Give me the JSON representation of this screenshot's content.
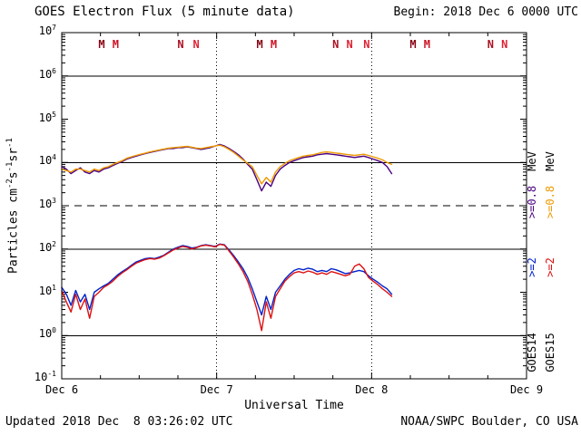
{
  "header": {
    "title": "GOES Electron Flux (5 minute data)",
    "begin": "Begin: 2018 Dec 6 0000 UTC"
  },
  "footer": {
    "updated": "Updated 2018 Dec  8 03:26:02 UTC",
    "credit": "NOAA/SWPC Boulder, CO USA"
  },
  "axes": {
    "x_title": "Universal Time",
    "x_ticks": [
      "Dec 6",
      "Dec 7",
      "Dec 8",
      "Dec 9"
    ],
    "y_label_parts": {
      "p1": "Particles cm",
      "e1": "-2",
      "p2": "s",
      "e2": "-1",
      "p3": "sr",
      "e3": "-1"
    },
    "y_exponents": [
      7,
      6,
      5,
      4,
      3,
      2,
      1,
      0,
      -1
    ]
  },
  "right_labels": {
    "col1": {
      "mev": "MeV",
      "ch1": ">=0.8",
      "ch1_color": "#4b0082",
      "ch2": ">=2",
      "ch2_color": "#0022cc",
      "sat": "GOES14"
    },
    "col2": {
      "mev": "MeV",
      "ch1": ">=0.8",
      "ch1_color": "#ee9900",
      "ch2": ">=2",
      "ch2_color": "#dd1111",
      "sat": "GOES15"
    }
  },
  "markers": [
    {
      "label": "M",
      "day": 0.26,
      "color": "#880011"
    },
    {
      "label": "M",
      "day": 0.35,
      "color": "#cc1122"
    },
    {
      "label": "N",
      "day": 0.77,
      "color": "#aa1122"
    },
    {
      "label": "N",
      "day": 0.87,
      "color": "#dd2233"
    },
    {
      "label": "M",
      "day": 1.28,
      "color": "#880011"
    },
    {
      "label": "M",
      "day": 1.37,
      "color": "#cc1122"
    },
    {
      "label": "N",
      "day": 1.77,
      "color": "#aa1122"
    },
    {
      "label": "N",
      "day": 1.86,
      "color": "#dd2233"
    },
    {
      "label": "N",
      "day": 1.97,
      "color": "#dd2233"
    },
    {
      "label": "M",
      "day": 2.27,
      "color": "#880011"
    },
    {
      "label": "M",
      "day": 2.36,
      "color": "#cc1122"
    },
    {
      "label": "N",
      "day": 2.77,
      "color": "#aa1122"
    },
    {
      "label": "N",
      "day": 2.86,
      "color": "#dd2233"
    }
  ],
  "chart_data": {
    "type": "line",
    "title": "GOES Electron Flux (5 minute data)",
    "xlabel": "Universal Time",
    "ylabel": "Particles cm-2 s-1 sr-1",
    "x_axis_days": [
      0,
      3
    ],
    "x_tick_labels": [
      "Dec 6",
      "Dec 7",
      "Dec 8",
      "Dec 9"
    ],
    "y_scale": "log",
    "ylim": [
      0.1,
      10000000
    ],
    "solid_gridlines_log": [
      0,
      2,
      4,
      6
    ],
    "threshold_line": {
      "value": 1000,
      "style": "dashed"
    },
    "vertical_dotted_days": [
      1,
      2
    ],
    "x_days": [
      0.0,
      0.03,
      0.06,
      0.09,
      0.12,
      0.15,
      0.18,
      0.21,
      0.24,
      0.27,
      0.3,
      0.33,
      0.36,
      0.39,
      0.42,
      0.45,
      0.48,
      0.51,
      0.54,
      0.57,
      0.6,
      0.63,
      0.66,
      0.69,
      0.72,
      0.75,
      0.78,
      0.81,
      0.84,
      0.87,
      0.9,
      0.93,
      0.96,
      0.99,
      1.02,
      1.05,
      1.08,
      1.11,
      1.14,
      1.17,
      1.2,
      1.23,
      1.26,
      1.29,
      1.32,
      1.35,
      1.38,
      1.41,
      1.44,
      1.47,
      1.5,
      1.53,
      1.56,
      1.59,
      1.62,
      1.65,
      1.68,
      1.71,
      1.74,
      1.77,
      1.8,
      1.83,
      1.86,
      1.89,
      1.92,
      1.95,
      1.98,
      2.01,
      2.04,
      2.07,
      2.1,
      2.13
    ],
    "series": [
      {
        "name": "GOES14 >=0.8 MeV",
        "color": "#4b0082",
        "values": [
          8000,
          7000,
          5500,
          6500,
          7500,
          6000,
          5500,
          6500,
          6000,
          7000,
          7500,
          8500,
          9500,
          10500,
          12000,
          13000,
          14000,
          15000,
          16000,
          17000,
          18000,
          19000,
          20000,
          21000,
          21000,
          22000,
          22000,
          23000,
          22000,
          21000,
          20000,
          21000,
          22000,
          24000,
          26000,
          24000,
          21000,
          18000,
          15000,
          12000,
          9000,
          7000,
          4000,
          2200,
          3500,
          2800,
          5000,
          7000,
          8500,
          10000,
          11000,
          12000,
          13000,
          13500,
          14000,
          15000,
          15500,
          16000,
          15500,
          15000,
          14500,
          14000,
          13500,
          13000,
          13500,
          14000,
          13000,
          12000,
          11000,
          10000,
          8000,
          5500
        ]
      },
      {
        "name": "GOES15 >=0.8 MeV",
        "color": "#ee9900",
        "values": [
          7000,
          6500,
          6000,
          7000,
          7000,
          6500,
          6000,
          7000,
          6500,
          7500,
          8000,
          9000,
          10000,
          11000,
          12500,
          13500,
          14500,
          15500,
          16500,
          17500,
          18500,
          19500,
          20500,
          21500,
          22000,
          22500,
          23000,
          23500,
          22500,
          21500,
          21000,
          22000,
          23000,
          24000,
          25000,
          23000,
          20000,
          17000,
          14000,
          11500,
          9500,
          8000,
          5000,
          3200,
          4500,
          3500,
          6000,
          8000,
          9500,
          11000,
          12000,
          13000,
          14000,
          14500,
          15000,
          16000,
          17000,
          17500,
          17000,
          16500,
          16000,
          15500,
          15000,
          14500,
          15000,
          15500,
          14500,
          13500,
          12500,
          11500,
          10000,
          9000
        ]
      },
      {
        "name": "GOES14 >=2 MeV",
        "color": "#0022cc",
        "values": [
          13,
          9,
          5,
          11,
          6,
          9,
          4,
          10,
          12,
          14,
          16,
          20,
          25,
          30,
          35,
          42,
          50,
          55,
          60,
          62,
          60,
          65,
          72,
          85,
          100,
          110,
          120,
          115,
          105,
          110,
          120,
          125,
          120,
          115,
          130,
          125,
          95,
          70,
          50,
          35,
          22,
          12,
          6,
          3,
          8,
          4,
          10,
          14,
          20,
          26,
          32,
          35,
          33,
          36,
          34,
          30,
          32,
          30,
          35,
          33,
          30,
          27,
          28,
          30,
          32,
          30,
          24,
          20,
          17,
          14,
          12,
          9
        ]
      },
      {
        "name": "GOES15 >=2 MeV",
        "color": "#dd1111",
        "values": [
          11,
          6,
          3.5,
          9,
          4,
          7,
          2.5,
          8,
          10,
          13,
          15,
          18,
          23,
          28,
          33,
          40,
          47,
          52,
          57,
          60,
          58,
          62,
          70,
          82,
          95,
          105,
          115,
          110,
          100,
          108,
          118,
          122,
          118,
          112,
          128,
          122,
          90,
          65,
          45,
          30,
          18,
          9,
          4,
          1.3,
          6,
          2.5,
          8,
          12,
          18,
          23,
          28,
          30,
          28,
          31,
          29,
          26,
          28,
          26,
          30,
          28,
          26,
          24,
          26,
          40,
          45,
          35,
          22,
          18,
          15,
          12,
          10,
          8
        ]
      }
    ]
  }
}
